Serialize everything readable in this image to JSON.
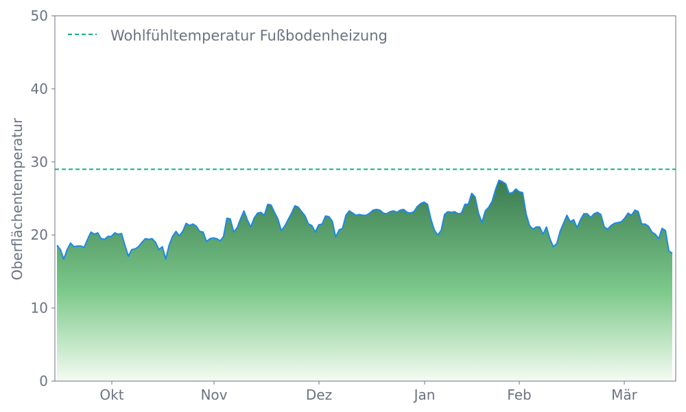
{
  "chart_data": {
    "type": "area",
    "title": "",
    "xlabel": "",
    "ylabel": "Oberflächentemperatur",
    "ylim": [
      0,
      50
    ],
    "y_ticks": [
      "0",
      "10",
      "20",
      "30",
      "40",
      "50"
    ],
    "x_ticks": [
      "Okt",
      "Nov",
      "Dez",
      "Jan",
      "Feb",
      "Mär"
    ],
    "grid": false,
    "legend_position": "top-left",
    "series": [
      {
        "values": [
          18.6,
          18.0,
          16.7,
          18.0,
          18.9,
          18.4,
          18.5,
          18.5,
          18.3,
          19.4,
          20.4,
          20.1,
          20.3,
          19.5,
          19.4,
          19.8,
          19.8,
          20.3,
          20.1,
          20.2,
          18.6,
          17.1,
          18.0,
          18.1,
          18.4,
          19.0,
          19.5,
          19.4,
          19.5,
          19.0,
          18.0,
          18.4,
          16.7,
          18.6,
          19.8,
          20.5,
          19.9,
          20.5,
          21.6,
          21.3,
          21.5,
          21.2,
          20.5,
          20.4,
          19.1,
          19.5,
          19.6,
          19.5,
          19.2,
          19.8,
          22.3,
          22.2,
          20.4,
          21.0,
          22.2,
          23.3,
          22.1,
          21.1,
          22.3,
          23.0,
          23.1,
          22.7,
          24.2,
          24.1,
          23.1,
          22.2,
          20.6,
          21.2,
          22.1,
          23.0,
          24.0,
          23.8,
          23.2,
          22.6,
          21.5,
          21.3,
          20.4,
          21.4,
          21.5,
          22.6,
          22.5,
          21.9,
          19.7,
          20.7,
          20.9,
          22.7,
          23.3,
          23.0,
          22.7,
          22.8,
          22.7,
          22.7,
          23.0,
          23.4,
          23.5,
          23.4,
          23.0,
          22.9,
          23.2,
          23.3,
          23.1,
          23.4,
          23.5,
          23.1,
          23.0,
          23.2,
          23.9,
          24.3,
          24.5,
          24.2,
          22.2,
          20.7,
          20.0,
          20.6,
          22.8,
          23.2,
          23.1,
          23.2,
          22.9,
          23.0,
          24.2,
          24.2,
          25.7,
          25.2,
          23.0,
          21.7,
          23.3,
          23.8,
          24.6,
          26.2,
          27.5,
          27.3,
          27.0,
          25.7,
          25.8,
          26.3,
          25.9,
          25.8,
          22.9,
          21.3,
          20.8,
          21.1,
          21.1,
          20.1,
          21.1,
          19.5,
          18.4,
          18.8,
          20.5,
          21.6,
          22.7,
          21.8,
          22.1,
          21.0,
          22.1,
          22.9,
          22.9,
          22.4,
          22.9,
          23.1,
          22.8,
          21.1,
          20.8,
          21.3,
          21.6,
          21.7,
          21.8,
          22.3,
          23.0,
          22.7,
          23.4,
          23.2,
          21.5,
          21.5,
          21.2,
          20.4,
          20.1,
          19.5,
          20.9,
          20.6,
          17.8,
          17.5
        ]
      }
    ],
    "reference_line": {
      "name": "Wohlfühltemperatur Fußbodenheizung",
      "value": 29
    },
    "colors": {
      "line": "#1e88e5",
      "fill_top": "#3a7a50",
      "fill_mid": "#7cc98a",
      "fill_bottom": "#f4fbf2",
      "reference": "#12b07a",
      "axis_text": "#6b7280",
      "frame": "#6b7280"
    }
  }
}
